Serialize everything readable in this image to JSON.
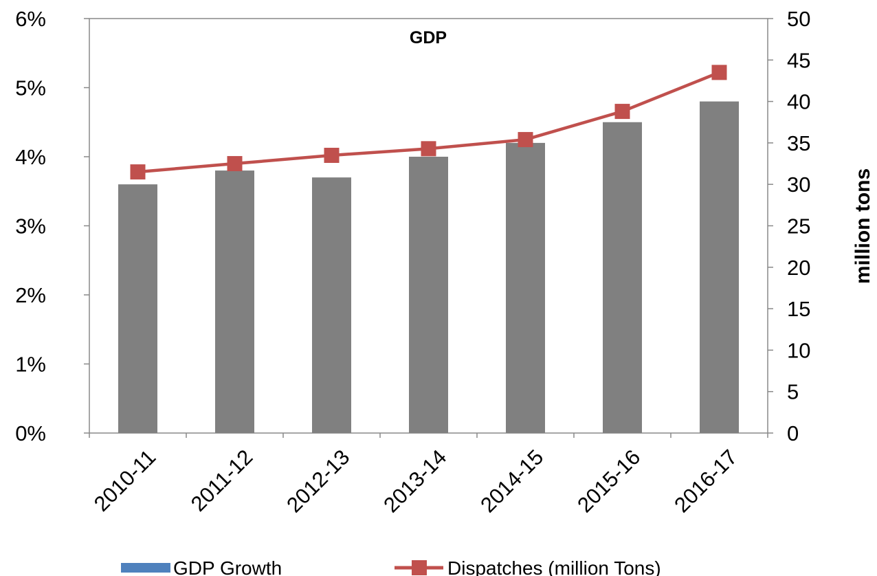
{
  "chart_data": {
    "type": "bar",
    "title": "GDP",
    "categories": [
      "2010-11",
      "2011-12",
      "2012-13",
      "2013-14",
      "2014-15",
      "2015-16",
      "2016-17"
    ],
    "series": [
      {
        "name": "GDP Growth",
        "kind": "bar",
        "axis": "left",
        "values": [
          3.6,
          3.8,
          3.7,
          4.0,
          4.2,
          4.5,
          4.8
        ],
        "color": "#808080",
        "legend_color": "#4f81bd"
      },
      {
        "name": "Dispatches (million Tons)",
        "kind": "line",
        "axis": "right",
        "values": [
          31.5,
          32.5,
          33.5,
          34.3,
          35.4,
          38.8,
          43.5
        ],
        "color": "#c0504d"
      }
    ],
    "y_left": {
      "ticks": [
        0,
        1,
        2,
        3,
        4,
        5,
        6
      ],
      "tick_labels": [
        "0%",
        "1%",
        "2%",
        "3%",
        "4%",
        "5%",
        "6%"
      ],
      "ylim": [
        0,
        6
      ],
      "label": ""
    },
    "y_right": {
      "ticks": [
        0,
        5,
        10,
        15,
        20,
        25,
        30,
        35,
        40,
        45,
        50
      ],
      "tick_labels": [
        "0",
        "5",
        "10",
        "15",
        "20",
        "25",
        "30",
        "35",
        "40",
        "45",
        "50"
      ],
      "ylim": [
        0,
        50
      ],
      "label": "million tons"
    },
    "xlabel": "",
    "grid": false,
    "legend_position": "bottom"
  }
}
